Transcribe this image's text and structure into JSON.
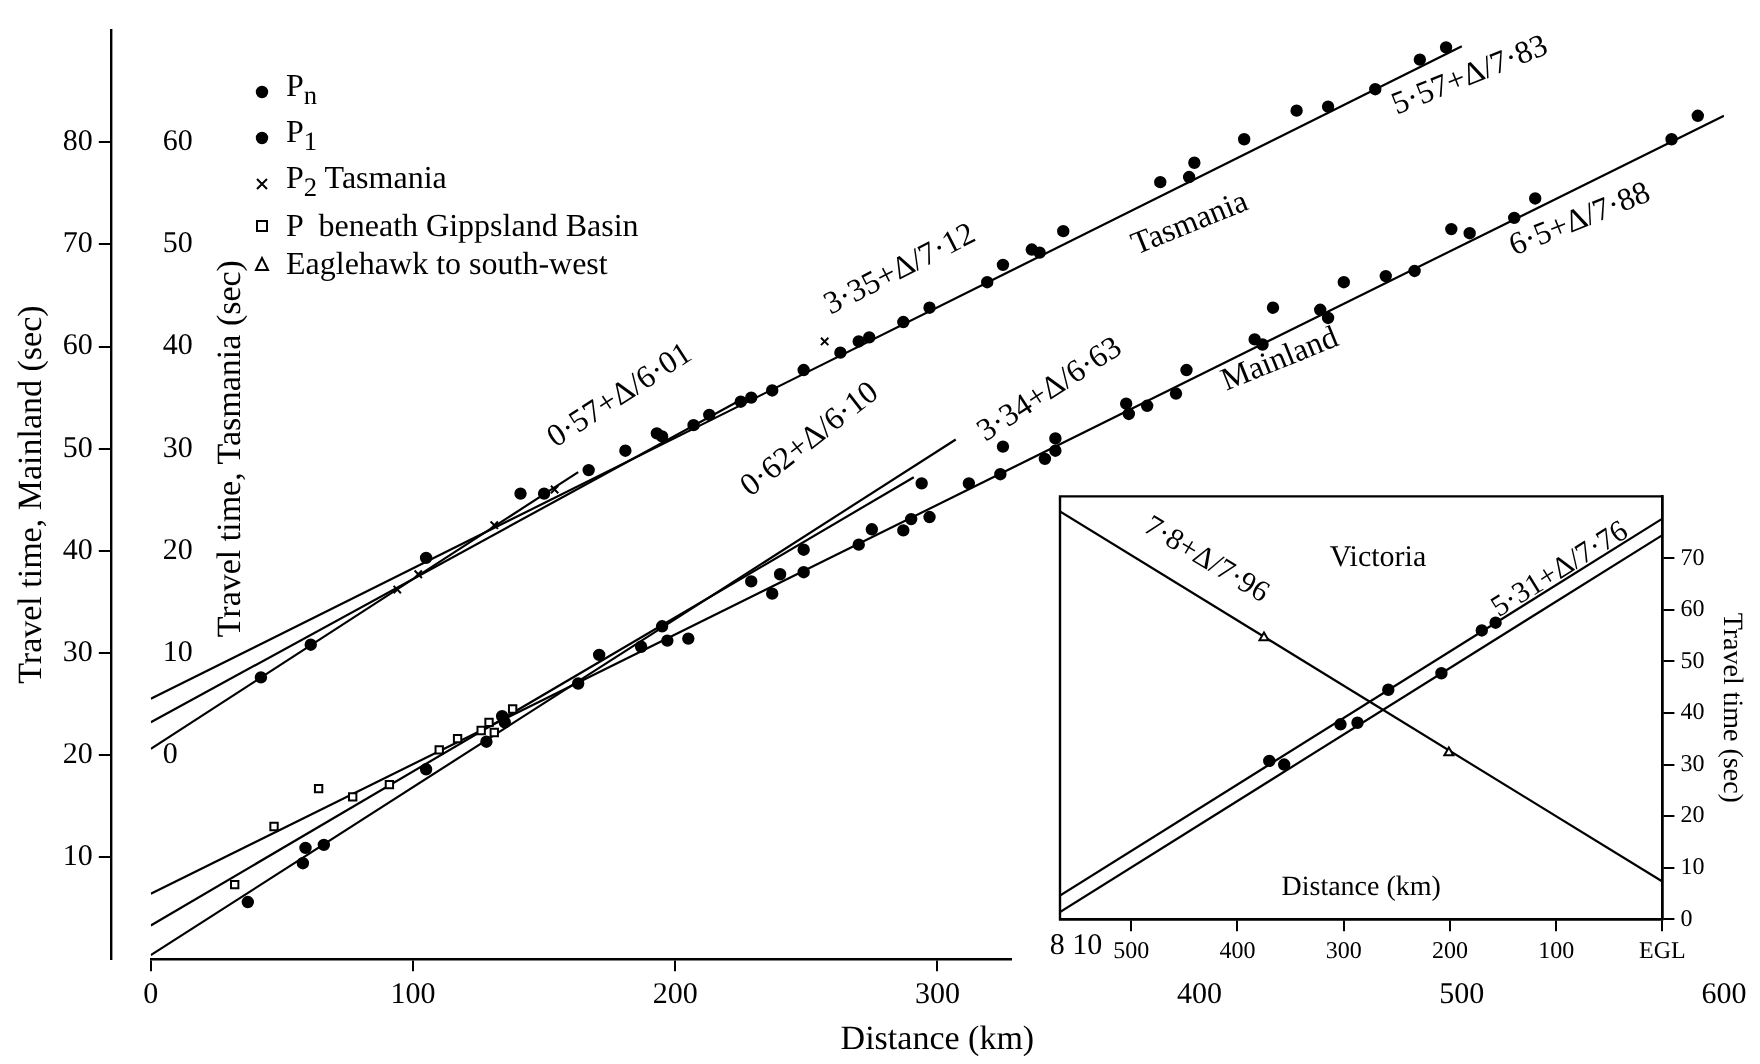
{
  "chart_data": [
    {
      "type": "scatter",
      "xlabel": "Distance (km)",
      "ylabel": "Travel time, Mainland (sec)",
      "y2label": "Travel time, Tasmania (sec)",
      "xlim": [
        0,
        600
      ],
      "xticks": [
        0,
        100,
        200,
        300,
        400,
        500,
        600
      ],
      "ylim": [
        0,
        91
      ],
      "yticks": [
        10,
        20,
        30,
        40,
        50,
        60,
        70,
        80
      ],
      "y2lim": [
        -20,
        71
      ],
      "y2ticks": [
        0,
        10,
        20,
        30,
        40,
        50,
        60
      ],
      "grid": false,
      "legend": "top left",
      "series": [
        {
          "name": "P$_{n}$",
          "color": "#000000",
          "marker": "circle",
          "x": [
            66,
            134,
            163,
            171,
            195,
            197,
            205,
            229,
            237,
            240,
            249,
            249,
            270,
            275,
            287,
            290,
            294,
            297,
            312,
            324,
            325,
            341,
            345,
            345,
            372,
            373,
            380,
            391,
            395,
            421,
            424,
            428,
            446,
            449,
            455,
            471,
            482,
            496,
            503,
            520,
            528,
            580,
            590
          ],
          "values": [
            11.2,
            23.8,
            27.0,
            29.8,
            32.6,
            31.2,
            31.4,
            37.0,
            35.8,
            37.7,
            40.1,
            37.9,
            40.6,
            42.1,
            42.0,
            43.1,
            46.6,
            43.3,
            46.6,
            47.5,
            50.2,
            49.0,
            49.8,
            51.0,
            54.4,
            53.4,
            54.2,
            55.4,
            57.7,
            60.7,
            60.2,
            63.8,
            63.6,
            62.8,
            66.3,
            66.9,
            67.4,
            71.5,
            71.1,
            72.6,
            74.5,
            80.3,
            82.6
          ]
        },
        {
          "color": "#000000",
          "marker": "circle",
          "axis": "y2",
          "x": [
            141,
            150,
            167,
            181,
            193,
            195,
            207,
            213,
            225,
            229,
            237,
            249,
            263,
            270,
            274,
            287,
            297,
            319,
            325,
            336,
            339,
            348,
            385,
            396,
            398,
            417,
            437,
            449,
            467,
            484,
            494
          ],
          "values": [
            25.6,
            25.6,
            27.9,
            29.8,
            31.5,
            31.2,
            32.3,
            33.3,
            34.6,
            35.0,
            35.7,
            37.7,
            39.4,
            40.5,
            40.9,
            42.4,
            43.8,
            46.3,
            48.0,
            49.5,
            49.2,
            51.3,
            56.1,
            56.6,
            58.0,
            60.3,
            63.1,
            63.5,
            65.2,
            68.1,
            69.3
          ]
        },
        {
          "name": "P$_{1}$",
          "color": "#000000",
          "marker": "circle",
          "x": [
            37,
            58,
            59,
            105,
            128,
            135,
            187
          ],
          "values": [
            5.6,
            9.4,
            10.9,
            18.6,
            21.3,
            23.2,
            30.6
          ]
        },
        {
          "color": "#000000",
          "marker": "circle",
          "axis": "y2",
          "x": [
            42,
            61,
            105
          ],
          "values": [
            7.6,
            10.8,
            19.3
          ]
        },
        {
          "name": "P$_{2}$ Tasmania",
          "color": "#000000",
          "marker": "cross",
          "axis": "y2",
          "x": [
            94,
            102,
            131,
            154,
            257
          ],
          "values": [
            16.2,
            17.7,
            22.5,
            26.0,
            40.5
          ]
        },
        {
          "name": "P  beneath Gippsland Basin",
          "color": "#000000",
          "marker": "square",
          "x": [
            32,
            47,
            64,
            77,
            91,
            110,
            117,
            126,
            129,
            131,
            138
          ],
          "values": [
            7.3,
            13.0,
            16.7,
            15.9,
            17.1,
            20.5,
            21.6,
            22.4,
            23.2,
            22.2,
            24.5
          ]
        },
        {
          "type": "line",
          "color": "#000000",
          "marker": "none",
          "axis": "y2",
          "x": [
            0,
            163
          ],
          "values": [
            0.6,
            27.7
          ]
        },
        {
          "type": "line",
          "color": "#000000",
          "marker": "none",
          "axis": "y2",
          "x": [
            0,
            223
          ],
          "values": [
            3.2,
            34.5
          ]
        },
        {
          "type": "line",
          "color": "#000000",
          "marker": "none",
          "axis": "y2",
          "x": [
            0,
            500
          ],
          "values": [
            5.5,
            69.4
          ]
        },
        {
          "type": "line",
          "color": "#000000",
          "marker": "none",
          "x": [
            0,
            600
          ],
          "values": [
            6.4,
            82.6
          ]
        },
        {
          "type": "line",
          "color": "#000000",
          "marker": "none",
          "x": [
            0,
            291
          ],
          "values": [
            3.3,
            47.2
          ]
        },
        {
          "type": "line",
          "color": "#000000",
          "marker": "none",
          "x": [
            0,
            307
          ],
          "values": [
            0.4,
            50.9
          ]
        }
      ],
      "annotations": [
        "0·57+Δ/6·01",
        "3·35+Δ/7·12",
        "5·57+Δ/7·83",
        "Tasmania",
        "0·62+Δ/6·10",
        "3·34+Δ/6·63",
        "6·5+Δ/7·88",
        "Mainland"
      ]
    },
    {
      "type": "scatter",
      "xlabel": "Distance (km)",
      "ylabel": "Travel time (sec)",
      "xlim": [
        567,
        0
      ],
      "xticks": [
        500,
        400,
        300,
        200,
        100,
        {
          "value": 0,
          "label": "EGL"
        }
      ],
      "ylim": [
        0,
        82
      ],
      "yticks": [
        0,
        10,
        20,
        30,
        40,
        50,
        60,
        70
      ],
      "grid": false,
      "series": [
        {
          "color": "#000000",
          "marker": "circle",
          "x": [
            370,
            356,
            303,
            287,
            258,
            208,
            170,
            157
          ],
          "values": [
            30.7,
            30.0,
            37.8,
            38.1,
            44.5,
            47.7,
            56.0,
            57.5
          ]
        },
        {
          "name": "Eaglehawk to south-west",
          "color": "#000000",
          "marker": "triangle",
          "x": [
            375,
            201
          ],
          "values": [
            54.6,
            32.3
          ]
        },
        {
          "type": "line",
          "color": "#000000",
          "marker": "none",
          "x": [
            567,
            0
          ],
          "values": [
            79.1,
            7.3
          ]
        },
        {
          "type": "line",
          "color": "#000000",
          "marker": "none",
          "x": [
            567,
            0
          ],
          "values": [
            4.6,
            77.7
          ]
        },
        {
          "type": "line",
          "color": "#000000",
          "marker": "none",
          "x": [
            567,
            0
          ],
          "values": [
            1.4,
            74.5
          ]
        }
      ],
      "annotations": [
        "Victoria",
        "8 10",
        "7·8+Δ/7·96",
        "5·31+Δ/7·76"
      ]
    }
  ]
}
